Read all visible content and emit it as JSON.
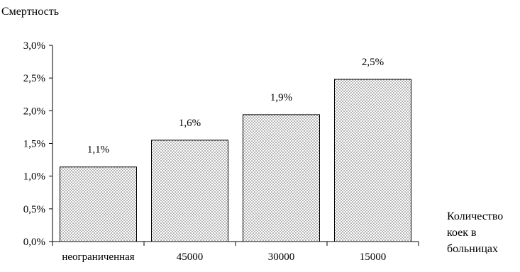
{
  "chart_data": {
    "type": "bar",
    "ylabel": "Смертность",
    "xlabel": "Количество коек в больницах",
    "xlabel_lines": [
      "Количество",
      "коек в",
      "больницах"
    ],
    "categories": [
      "неограниченная",
      "45000",
      "30000",
      "15000"
    ],
    "values": [
      1.14,
      1.55,
      1.94,
      2.48
    ],
    "value_labels": [
      "1,1%",
      "1,6%",
      "1,9%",
      "2,5%"
    ],
    "ylim": [
      0,
      3.0
    ],
    "y_ticks": [
      0,
      0.5,
      1.0,
      1.5,
      2.0,
      2.5,
      3.0
    ],
    "y_tick_labels": [
      "0,0%",
      "0,5%",
      "1,0%",
      "1,5%",
      "2,0%",
      "2,5%",
      "3,0%"
    ],
    "grid": false,
    "legend": "none",
    "bar_fill": "dotted-pattern",
    "colors": {
      "bar_border": "#000000",
      "dots": "#555555",
      "background": "#ffffff"
    }
  }
}
